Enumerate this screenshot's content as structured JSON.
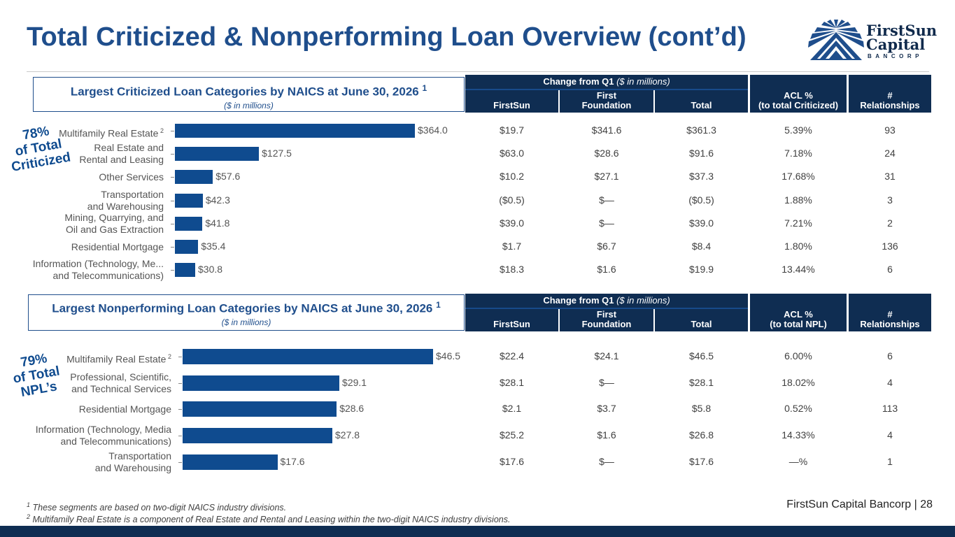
{
  "title": "Total Criticized & Nonperforming Loan Overview (cont’d)",
  "logo": {
    "line1": "FirstSun",
    "line2": "Capital",
    "line3": "BANCORP"
  },
  "colors": {
    "title": "#1f4e8c",
    "header": "#0f2d52",
    "bar": "#0f4b8f"
  },
  "criticized": {
    "box_title": "Largest Criticized Loan Categories by NAICS at June 30, 2026",
    "box_title_sup": "1",
    "box_subtitle": "($ in millions)",
    "badge": "78%\nof Total\nCriticized",
    "header": {
      "group_bold": "Change from Q1",
      "group_italic": "($ in millions)",
      "col_firstsun": "FirstSun",
      "col_first_foundation": "First\nFoundation",
      "col_total": "Total",
      "col_acl": "ACL %\n(to total Criticized)",
      "col_rel": "#\nRelationships"
    },
    "rows": [
      {
        "firstsun": "$19.7",
        "ff": "$341.6",
        "total": "$361.3",
        "acl": "5.39%",
        "rel": "93"
      },
      {
        "firstsun": "$63.0",
        "ff": "$28.6",
        "total": "$91.6",
        "acl": "7.18%",
        "rel": "24"
      },
      {
        "firstsun": "$10.2",
        "ff": "$27.1",
        "total": "$37.3",
        "acl": "17.68%",
        "rel": "31"
      },
      {
        "firstsun": "($0.5)",
        "ff": "$—",
        "total": "($0.5)",
        "acl": "1.88%",
        "rel": "3"
      },
      {
        "firstsun": "$39.0",
        "ff": "$—",
        "total": "$39.0",
        "acl": "7.21%",
        "rel": "2"
      },
      {
        "firstsun": "$1.7",
        "ff": "$6.7",
        "total": "$8.4",
        "acl": "1.80%",
        "rel": "136"
      },
      {
        "firstsun": "$18.3",
        "ff": "$1.6",
        "total": "$19.9",
        "acl": "13.44%",
        "rel": "6"
      }
    ]
  },
  "npl": {
    "box_title": "Largest Nonperforming Loan Categories by NAICS at June 30, 2026",
    "box_title_sup": "1",
    "box_subtitle": "($ in millions)",
    "badge": "79%\nof Total\nNPL’s",
    "header": {
      "group_bold": "Change from Q1",
      "group_italic": "($ in millions)",
      "col_firstsun": "FirstSun",
      "col_first_foundation": "First\nFoundation",
      "col_total": "Total",
      "col_acl": "ACL %\n(to total NPL)",
      "col_rel": "#\nRelationships"
    },
    "rows": [
      {
        "firstsun": "$22.4",
        "ff": "$24.1",
        "total": "$46.5",
        "acl": "6.00%",
        "rel": "6"
      },
      {
        "firstsun": "$28.1",
        "ff": "$—",
        "total": "$28.1",
        "acl": "18.02%",
        "rel": "4"
      },
      {
        "firstsun": "$2.1",
        "ff": "$3.7",
        "total": "$5.8",
        "acl": "0.52%",
        "rel": "113"
      },
      {
        "firstsun": "$25.2",
        "ff": "$1.6",
        "total": "$26.8",
        "acl": "14.33%",
        "rel": "4"
      },
      {
        "firstsun": "$17.6",
        "ff": "$—",
        "total": "$17.6",
        "acl": "—%",
        "rel": "1"
      }
    ]
  },
  "chart_data": [
    {
      "type": "bar",
      "orientation": "horizontal",
      "categories": [
        "Multifamily Real Estate",
        "Real Estate and\nRental and Leasing",
        "Other Services",
        "Transportation\nand Warehousing",
        "Mining, Quarrying, and\nOil and Gas Extraction",
        "Residential Mortgage",
        "Information (Technology, Me...\nand Telecommunications)"
      ],
      "category_sups": [
        "2",
        "",
        "",
        "",
        "",
        "",
        ""
      ],
      "values": [
        364.0,
        127.5,
        57.6,
        42.3,
        41.8,
        35.4,
        30.8
      ],
      "value_labels": [
        "$364.0",
        "$127.5",
        "$57.6",
        "$42.3",
        "$41.8",
        "$35.4",
        "$30.8"
      ]
    },
    {
      "type": "bar",
      "orientation": "horizontal",
      "categories": [
        "Multifamily Real Estate",
        "Professional, Scientific,\nand Technical Services",
        "Residential Mortgage",
        "Information (Technology, Media\nand Telecommunications)",
        "Transportation\nand Warehousing"
      ],
      "category_sups": [
        "2",
        "",
        "",
        "",
        ""
      ],
      "values": [
        46.5,
        29.1,
        28.6,
        27.8,
        17.6
      ],
      "value_labels": [
        "$46.5",
        "$29.1",
        "$28.6",
        "$27.8",
        "$17.6"
      ]
    }
  ],
  "footnotes": {
    "n1_sup": "1",
    "n1": " These segments are based on two-digit NAICS industry divisions.",
    "n2_sup": "2",
    "n2": " Multifamily Real Estate is a component of Real Estate and Rental and Leasing within the two-digit NAICS industry divisions."
  },
  "page_info": "FirstSun Capital Bancorp  |  28"
}
